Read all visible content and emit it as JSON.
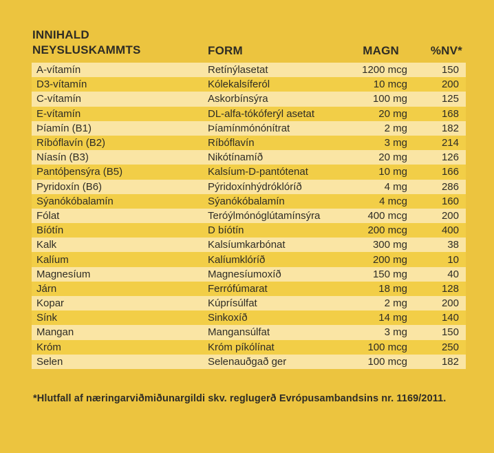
{
  "header": {
    "title_line1": "INNIHALD",
    "title_line2": "NEYSLUSKAMMTS",
    "col_form": "FORM",
    "col_magn": "MAGN",
    "col_nv": "%NV*"
  },
  "rows": [
    {
      "name": "A-vítamín",
      "form": "Retínýlasetat",
      "magn": "1200 mcg",
      "nv": "150"
    },
    {
      "name": "D3-vítamín",
      "form": "Kólekalsíferól",
      "magn": "10 mcg",
      "nv": "200"
    },
    {
      "name": "C-vítamín",
      "form": "Askorbínsýra",
      "magn": "100 mg",
      "nv": "125"
    },
    {
      "name": "E-vítamín",
      "form": "DL-alfa-tókóferýl asetat",
      "magn": "20 mg",
      "nv": "168"
    },
    {
      "name": "Þíamín (B1)",
      "form": "Þíamínmónónítrat",
      "magn": "2 mg",
      "nv": "182"
    },
    {
      "name": "Ríbóflavín (B2)",
      "form": "Ríbóflavín",
      "magn": "3 mg",
      "nv": "214"
    },
    {
      "name": "Níasín (B3)",
      "form": "Nikótínamíð",
      "magn": "20 mg",
      "nv": "126"
    },
    {
      "name": "Pantóþensýra (B5)",
      "form": "Kalsíum-D-pantótenat",
      "magn": "10 mg",
      "nv": "166"
    },
    {
      "name": "Pyridoxín (B6)",
      "form": "Pýridoxínhýdróklóríð",
      "magn": "4 mg",
      "nv": "286"
    },
    {
      "name": "Sýanókóbalamín",
      "form": "Sýanókóbalamín",
      "magn": "4 mcg",
      "nv": "160"
    },
    {
      "name": "Fólat",
      "form": "Teróýlmónóglútamínsýra",
      "magn": "400 mcg",
      "nv": "200"
    },
    {
      "name": "Bíótín",
      "form": "D bíótín",
      "magn": "200 mcg",
      "nv": "400"
    },
    {
      "name": "Kalk",
      "form": "Kalsíumkarbónat",
      "magn": "300 mg",
      "nv": "38"
    },
    {
      "name": "Kalíum",
      "form": "Kalíumklóríð",
      "magn": "200 mg",
      "nv": "10"
    },
    {
      "name": "Magnesíum",
      "form": "Magnesíumoxíð",
      "magn": "150 mg",
      "nv": "40"
    },
    {
      "name": "Járn",
      "form": "Ferrófúmarat",
      "magn": "18 mg",
      "nv": "128"
    },
    {
      "name": "Kopar",
      "form": "Kúprísúlfat",
      "magn": "2 mg",
      "nv": "200"
    },
    {
      "name": "Sínk",
      "form": "Sinkoxíð",
      "magn": "14 mg",
      "nv": "140"
    },
    {
      "name": "Mangan",
      "form": "Mangansúlfat",
      "magn": "3 mg",
      "nv": "150"
    },
    {
      "name": "Króm",
      "form": "Króm píkólínat",
      "magn": "100 mcg",
      "nv": "250"
    },
    {
      "name": "Selen",
      "form": "Selenauðgað ger",
      "magn": "100 mcg",
      "nv": "182"
    }
  ],
  "footnote": "*Hlutfall af næringarviðmiðunargildi skv. reglugerð Evrópusambandsins nr. 1169/2011.",
  "colors": {
    "background": "#ecc43f",
    "row_light": "#fae5a4",
    "row_gold": "#f2ce47",
    "text": "#2e2c25"
  }
}
